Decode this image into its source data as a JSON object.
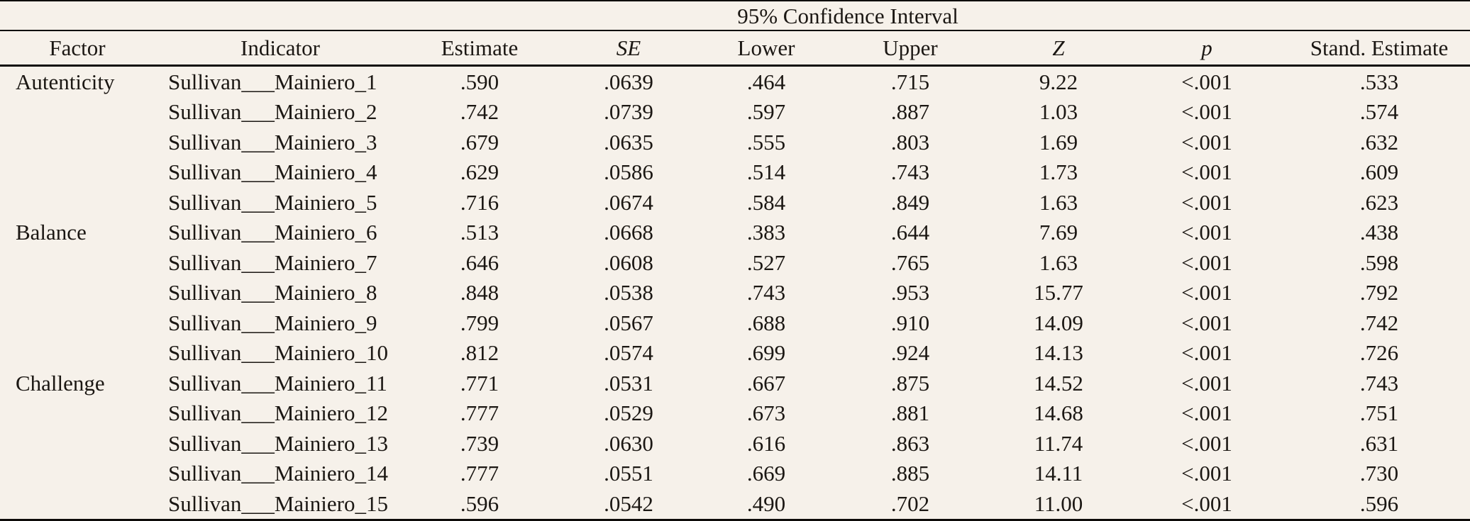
{
  "meta": {
    "background_color": "#f6f1ea",
    "text_color": "#1b1713",
    "border_color": "#0d0b09"
  },
  "table": {
    "span_header": {
      "label": "95% Confidence Interval",
      "spans_columns": [
        "Lower",
        "Upper"
      ]
    },
    "columns": [
      {
        "key": "factor",
        "label": "Factor",
        "italic": false
      },
      {
        "key": "indicator",
        "label": "Indicator",
        "italic": false
      },
      {
        "key": "estimate",
        "label": "Estimate",
        "italic": false
      },
      {
        "key": "se",
        "label": "SE",
        "italic": true
      },
      {
        "key": "lower",
        "label": "Lower",
        "italic": false
      },
      {
        "key": "upper",
        "label": "Upper",
        "italic": false
      },
      {
        "key": "z",
        "label": "Z",
        "italic": true
      },
      {
        "key": "p",
        "label": "p",
        "italic": true
      },
      {
        "key": "std_estimate",
        "label": "Stand. Estimate",
        "italic": false
      }
    ],
    "rows": [
      {
        "factor": "Autenticity",
        "indicator": "Sullivan___Mainiero_1",
        "estimate": ".590",
        "se": ".0639",
        "lower": ".464",
        "upper": ".715",
        "z": "9.22",
        "p": "<.001",
        "std_estimate": ".533"
      },
      {
        "factor": "",
        "indicator": "Sullivan___Mainiero_2",
        "estimate": ".742",
        "se": ".0739",
        "lower": ".597",
        "upper": ".887",
        "z": "1.03",
        "p": "<.001",
        "std_estimate": ".574"
      },
      {
        "factor": "",
        "indicator": "Sullivan___Mainiero_3",
        "estimate": ".679",
        "se": ".0635",
        "lower": ".555",
        "upper": ".803",
        "z": "1.69",
        "p": "<.001",
        "std_estimate": ".632"
      },
      {
        "factor": "",
        "indicator": "Sullivan___Mainiero_4",
        "estimate": ".629",
        "se": ".0586",
        "lower": ".514",
        "upper": ".743",
        "z": "1.73",
        "p": "<.001",
        "std_estimate": ".609"
      },
      {
        "factor": "",
        "indicator": "Sullivan___Mainiero_5",
        "estimate": ".716",
        "se": ".0674",
        "lower": ".584",
        "upper": ".849",
        "z": "1.63",
        "p": "<.001",
        "std_estimate": ".623"
      },
      {
        "factor": "Balance",
        "indicator": "Sullivan___Mainiero_6",
        "estimate": ".513",
        "se": ".0668",
        "lower": ".383",
        "upper": ".644",
        "z": "7.69",
        "p": "<.001",
        "std_estimate": ".438"
      },
      {
        "factor": "",
        "indicator": "Sullivan___Mainiero_7",
        "estimate": ".646",
        "se": ".0608",
        "lower": ".527",
        "upper": ".765",
        "z": "1.63",
        "p": "<.001",
        "std_estimate": ".598"
      },
      {
        "factor": "",
        "indicator": "Sullivan___Mainiero_8",
        "estimate": ".848",
        "se": ".0538",
        "lower": ".743",
        "upper": ".953",
        "z": "15.77",
        "p": "<.001",
        "std_estimate": ".792"
      },
      {
        "factor": "",
        "indicator": "Sullivan___Mainiero_9",
        "estimate": ".799",
        "se": ".0567",
        "lower": ".688",
        "upper": ".910",
        "z": "14.09",
        "p": "<.001",
        "std_estimate": ".742"
      },
      {
        "factor": "",
        "indicator": "Sullivan___Mainiero_10",
        "estimate": ".812",
        "se": ".0574",
        "lower": ".699",
        "upper": ".924",
        "z": "14.13",
        "p": "<.001",
        "std_estimate": ".726"
      },
      {
        "factor": "Challenge",
        "indicator": "Sullivan___Mainiero_11",
        "estimate": ".771",
        "se": ".0531",
        "lower": ".667",
        "upper": ".875",
        "z": "14.52",
        "p": "<.001",
        "std_estimate": ".743"
      },
      {
        "factor": "",
        "indicator": "Sullivan___Mainiero_12",
        "estimate": ".777",
        "se": ".0529",
        "lower": ".673",
        "upper": ".881",
        "z": "14.68",
        "p": "<.001",
        "std_estimate": ".751"
      },
      {
        "factor": "",
        "indicator": "Sullivan___Mainiero_13",
        "estimate": ".739",
        "se": ".0630",
        "lower": ".616",
        "upper": ".863",
        "z": "11.74",
        "p": "<.001",
        "std_estimate": ".631"
      },
      {
        "factor": "",
        "indicator": "Sullivan___Mainiero_14",
        "estimate": ".777",
        "se": ".0551",
        "lower": ".669",
        "upper": ".885",
        "z": "14.11",
        "p": "<.001",
        "std_estimate": ".730"
      },
      {
        "factor": "",
        "indicator": "Sullivan___Mainiero_15",
        "estimate": ".596",
        "se": ".0542",
        "lower": ".490",
        "upper": ".702",
        "z": "11.00",
        "p": "<.001",
        "std_estimate": ".596"
      }
    ]
  }
}
